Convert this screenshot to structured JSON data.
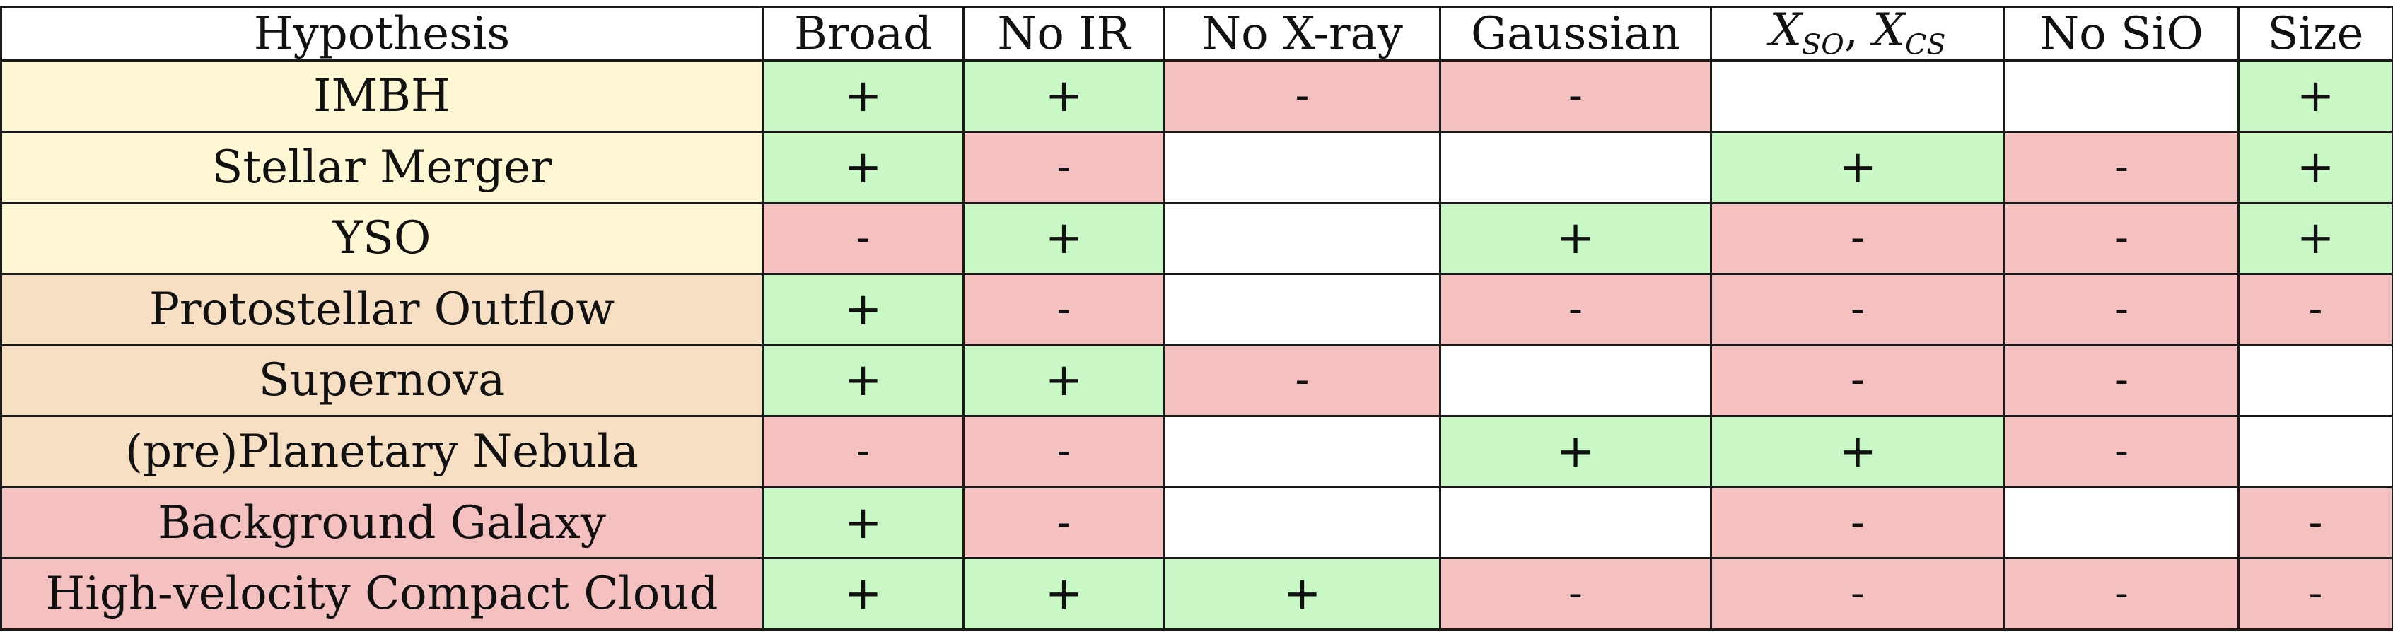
{
  "colors": {
    "plus": "#c9f7c5",
    "minus": "#f4c1c0",
    "empty": "#ffffff",
    "group_a": "#fdf7d4",
    "group_b": "#f7dfc4",
    "group_c": "#f4c1c0"
  },
  "header": {
    "hypothesis": "Hypothesis",
    "broad": "Broad",
    "no_ir": "No IR",
    "no_xray": "No X-ray",
    "gaussian": "Gaussian",
    "x_so_base": "X",
    "x_so_sub": "SO",
    "x_sep": ", ",
    "x_cs_base": "X",
    "x_cs_sub": "CS",
    "no_sio": "No SiO",
    "size": "Size"
  },
  "rows": [
    {
      "hypothesis": "IMBH",
      "group": "a",
      "cells": [
        "+",
        "+",
        "-",
        "-",
        "",
        "",
        "+"
      ]
    },
    {
      "hypothesis": "Stellar Merger",
      "group": "a",
      "cells": [
        "+",
        "-",
        "",
        "",
        "+",
        "-",
        "+"
      ]
    },
    {
      "hypothesis": "YSO",
      "group": "a",
      "cells": [
        "-",
        "+",
        "",
        "+",
        "-",
        "-",
        "+"
      ]
    },
    {
      "hypothesis": "Protostellar Outflow",
      "group": "b",
      "cells": [
        "+",
        "-",
        "",
        "-",
        "-",
        "-",
        "-"
      ]
    },
    {
      "hypothesis": "Supernova",
      "group": "b",
      "cells": [
        "+",
        "+",
        "-",
        "",
        "-",
        "-",
        ""
      ]
    },
    {
      "hypothesis": "(pre)Planetary Nebula",
      "group": "b",
      "cells": [
        "-",
        "-",
        "",
        "+",
        "+",
        "-",
        ""
      ]
    },
    {
      "hypothesis": "Background Galaxy",
      "group": "c",
      "cells": [
        "+",
        "-",
        "",
        "",
        "-",
        "",
        "-"
      ]
    },
    {
      "hypothesis": "High-velocity Compact Cloud",
      "group": "c",
      "cells": [
        "+",
        "+",
        "+",
        "-",
        "-",
        "-",
        "-"
      ]
    }
  ]
}
